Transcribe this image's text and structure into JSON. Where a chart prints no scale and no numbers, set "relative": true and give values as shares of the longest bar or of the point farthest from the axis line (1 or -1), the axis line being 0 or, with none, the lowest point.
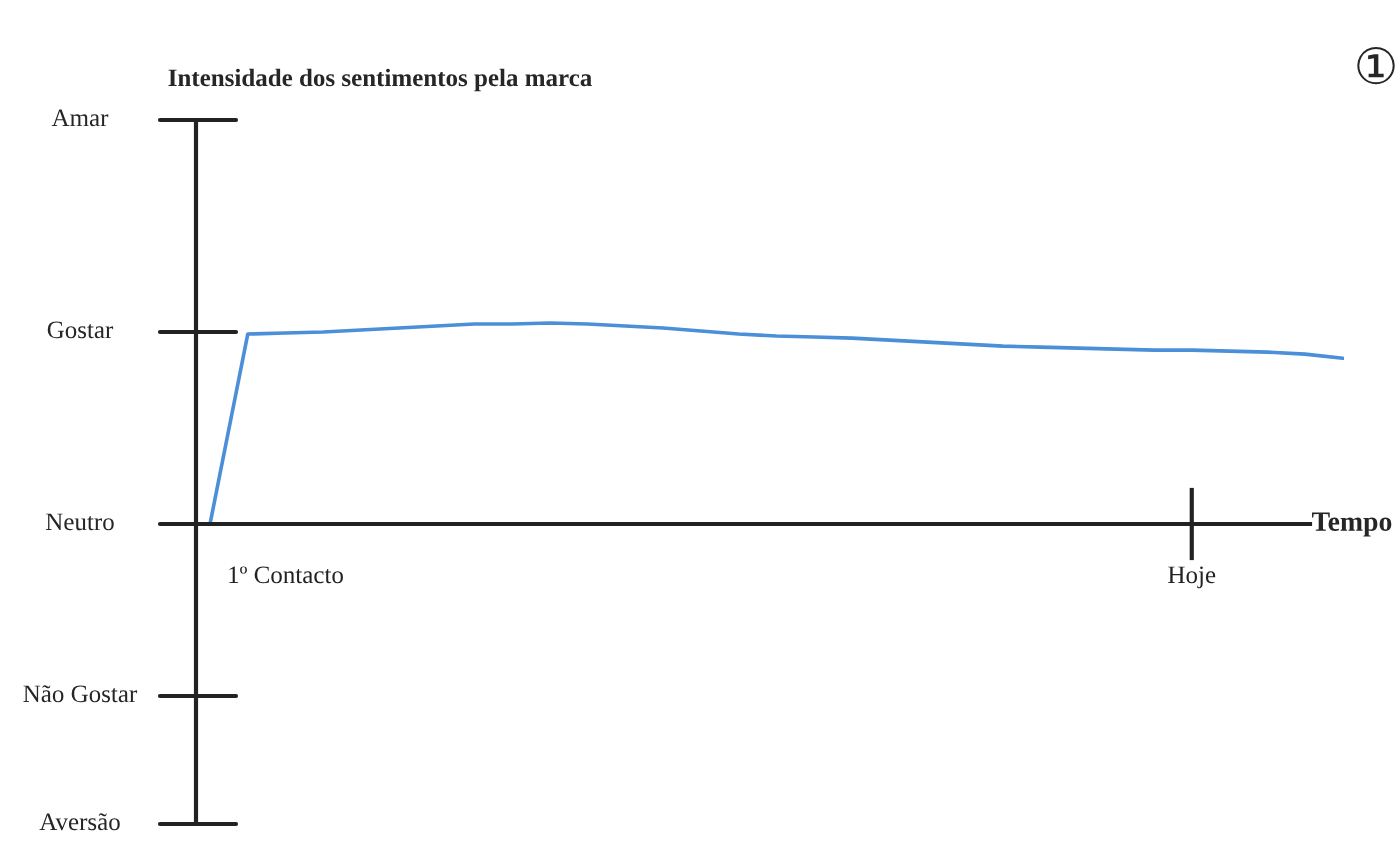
{
  "chart_data": {
    "type": "line",
    "relative": true,
    "title": "Intensidade dos sentimentos pela marca",
    "xlabel": "Tempo",
    "categories": [
      null,
      null,
      "1º Contacto",
      null,
      null,
      null,
      null,
      null,
      null,
      null,
      null,
      null,
      null,
      null,
      null,
      null,
      null,
      null,
      null,
      null,
      null,
      null,
      null,
      null,
      null,
      null,
      "Hoje",
      null,
      null,
      null,
      null
    ],
    "series": [
      {
        "color": "#4a8fd8",
        "values": [
          0,
          0.945,
          0.95,
          0.955,
          0.965,
          0.975,
          0.985,
          0.995,
          0.995,
          1,
          0.995,
          0.985,
          0.975,
          0.96,
          0.945,
          0.935,
          0.93,
          0.925,
          0.915,
          0.905,
          0.895,
          0.885,
          0.88,
          0.875,
          0.87,
          0.865,
          0.865,
          0.86,
          0.855,
          0.845,
          0.825
        ]
      }
    ],
    "annotations": [
      "Amar",
      "Gostar",
      "Neutro",
      "Não Gostar",
      "Aversão",
      "①"
    ],
    "grid": false,
    "legend": false,
    "marker": "none",
    "line_style": "solid"
  }
}
